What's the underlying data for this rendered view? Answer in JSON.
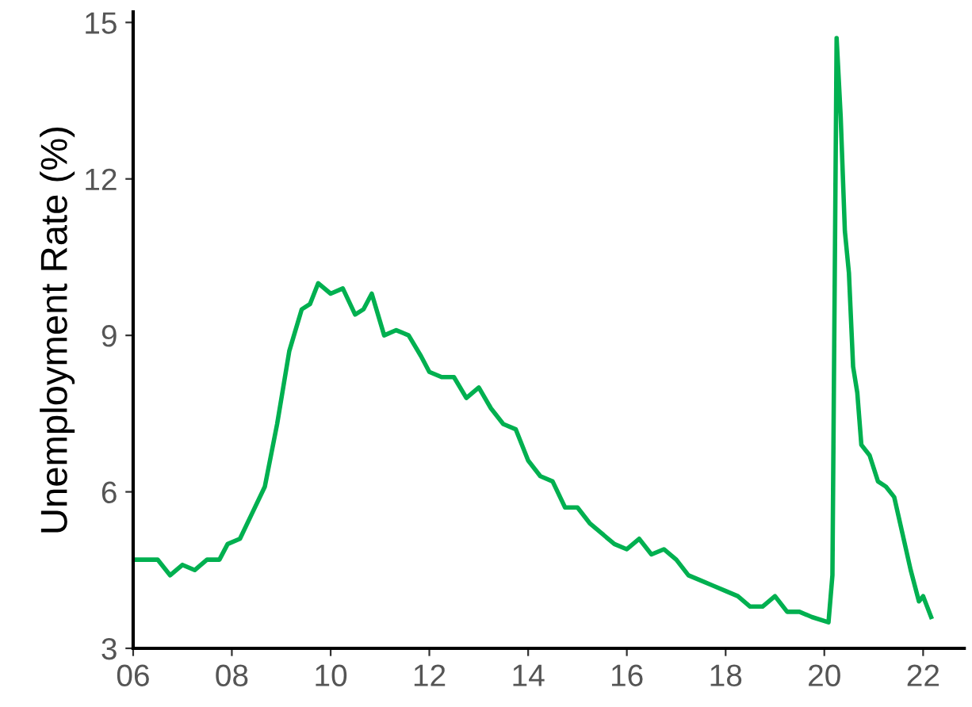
{
  "chart_data": {
    "type": "line",
    "ylabel": "Unemployment Rate (%)",
    "x": [
      "2006-01",
      "2006-04",
      "2006-07",
      "2006-10",
      "2007-01",
      "2007-04",
      "2007-07",
      "2007-10",
      "2007-12",
      "2008-03",
      "2008-06",
      "2008-09",
      "2008-12",
      "2009-03",
      "2009-06",
      "2009-08",
      "2009-10",
      "2010-01",
      "2010-04",
      "2010-07",
      "2010-09",
      "2010-11",
      "2011-02",
      "2011-05",
      "2011-08",
      "2011-11",
      "2012-01",
      "2012-04",
      "2012-07",
      "2012-10",
      "2013-01",
      "2013-04",
      "2013-07",
      "2013-10",
      "2014-01",
      "2014-04",
      "2014-07",
      "2014-10",
      "2015-01",
      "2015-04",
      "2015-07",
      "2015-10",
      "2016-01",
      "2016-04",
      "2016-07",
      "2016-10",
      "2017-01",
      "2017-04",
      "2017-07",
      "2017-10",
      "2018-01",
      "2018-04",
      "2018-07",
      "2018-10",
      "2019-01",
      "2019-04",
      "2019-07",
      "2019-10",
      "2020-02",
      "2020-03",
      "2020-04",
      "2020-05",
      "2020-06",
      "2020-07",
      "2020-08",
      "2020-09",
      "2020-10",
      "2020-12",
      "2021-02",
      "2021-04",
      "2021-06",
      "2021-08",
      "2021-10",
      "2021-12",
      "2022-01",
      "2022-03"
    ],
    "series": [
      {
        "color": "#00b050",
        "values": [
          4.7,
          4.7,
          4.7,
          4.4,
          4.6,
          4.5,
          4.7,
          4.7,
          5.0,
          5.1,
          5.6,
          6.1,
          7.3,
          8.7,
          9.5,
          9.6,
          10.0,
          9.8,
          9.9,
          9.4,
          9.5,
          9.8,
          9.0,
          9.1,
          9.0,
          8.6,
          8.3,
          8.2,
          8.2,
          7.8,
          8.0,
          7.6,
          7.3,
          7.2,
          6.6,
          6.3,
          6.2,
          5.7,
          5.7,
          5.4,
          5.2,
          5.0,
          4.9,
          5.1,
          4.8,
          4.9,
          4.7,
          4.4,
          4.3,
          4.2,
          4.1,
          4.0,
          3.8,
          3.8,
          4.0,
          3.7,
          3.7,
          3.6,
          3.5,
          4.4,
          14.7,
          13.2,
          11.0,
          10.2,
          8.4,
          7.9,
          6.9,
          6.7,
          6.2,
          6.1,
          5.9,
          5.2,
          4.5,
          3.9,
          4.0,
          3.6
        ]
      }
    ],
    "xlim": [
      "2006-01",
      "2022-11"
    ],
    "xticks": [
      {
        "value": "2006-01",
        "label": "06"
      },
      {
        "value": "2008-01",
        "label": "08"
      },
      {
        "value": "2010-01",
        "label": "10"
      },
      {
        "value": "2012-01",
        "label": "12"
      },
      {
        "value": "2014-01",
        "label": "14"
      },
      {
        "value": "2016-01",
        "label": "16"
      },
      {
        "value": "2018-01",
        "label": "18"
      },
      {
        "value": "2020-01",
        "label": "20"
      },
      {
        "value": "2022-01",
        "label": "22"
      }
    ],
    "ylim": [
      3,
      15.2
    ],
    "yticks": [
      3,
      6,
      9,
      12,
      15
    ],
    "grid": false,
    "legend": false
  }
}
